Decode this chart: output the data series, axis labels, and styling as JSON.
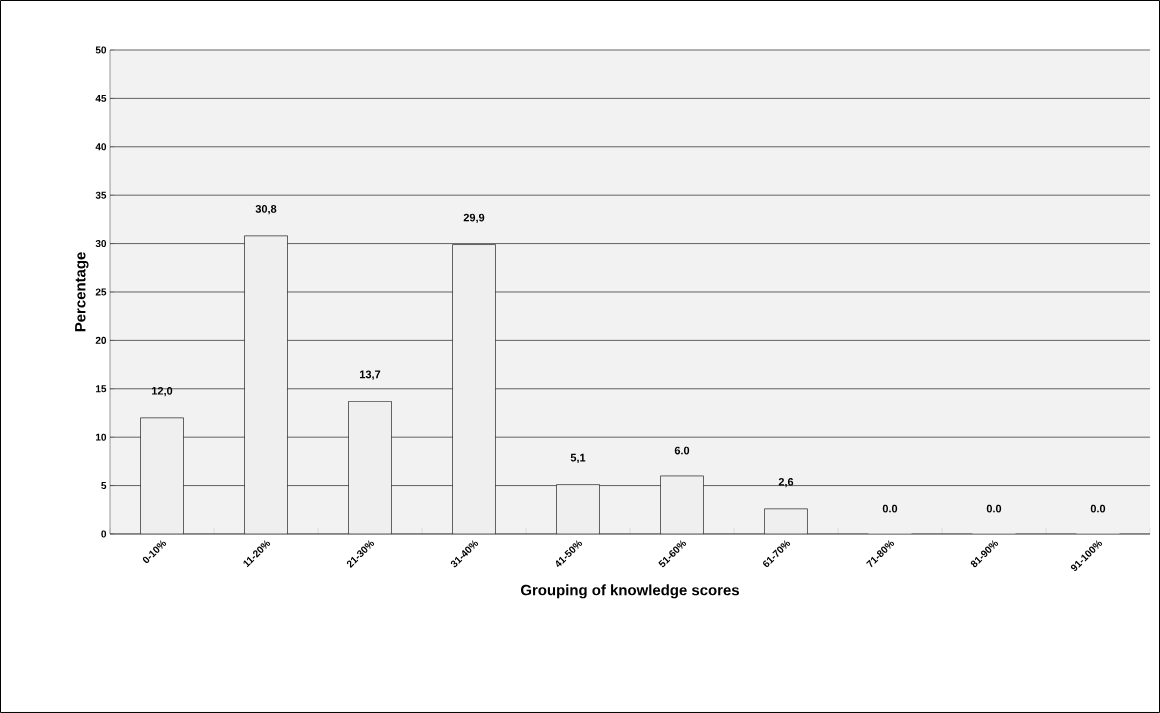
{
  "chart_data": {
    "type": "bar",
    "xlabel": "Grouping of knowledge scores",
    "ylabel": "Percentage",
    "categories": [
      "0-10%",
      "11-20%",
      "21-30%",
      "31-40%",
      "41-50%",
      "51-60%",
      "61-70%",
      "71-80%",
      "81-90%",
      "91-100%"
    ],
    "values": [
      12.0,
      30.8,
      13.7,
      29.9,
      5.1,
      6.0,
      2.6,
      0.0,
      0.0,
      0.0
    ],
    "value_labels": [
      "12,0",
      "30,8",
      "13,7",
      "29,9",
      "5,1",
      "6.0",
      "2,6",
      "0.0",
      "0.0",
      "0.0"
    ],
    "color": "#efefef",
    "ylim": [
      0,
      50
    ],
    "yticks": [
      0,
      5,
      10,
      15,
      20,
      25,
      30,
      35,
      40,
      45,
      50
    ],
    "grid": "y"
  }
}
